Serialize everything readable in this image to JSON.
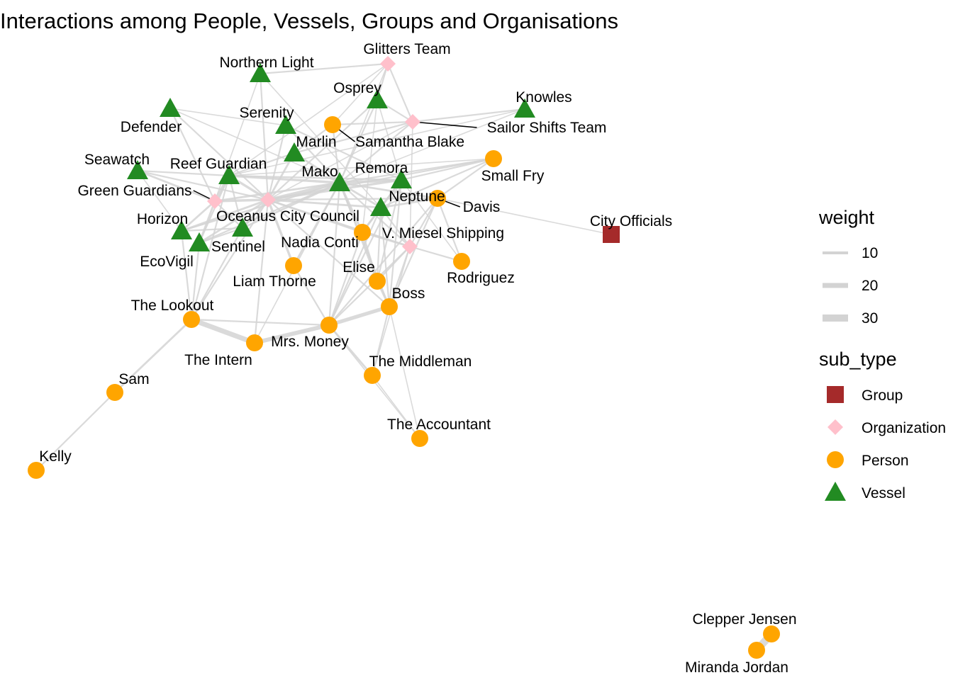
{
  "title": "Interactions among People, Vessels, Groups and Organisations",
  "colors": {
    "Group": "#a52a2a",
    "Organization": "#ffc0cb",
    "Person": "#ffa500",
    "Vessel": "#228b22",
    "edge": "#d3d3d3"
  },
  "legend": {
    "weight_title": "weight",
    "weight_items": [
      {
        "label": "10",
        "value": 10
      },
      {
        "label": "20",
        "value": 20
      },
      {
        "label": "30",
        "value": 30
      }
    ],
    "type_title": "sub_type",
    "type_items": [
      {
        "label": "Group",
        "type": "Group"
      },
      {
        "label": "Organization",
        "type": "Organization"
      },
      {
        "label": "Person",
        "type": "Person"
      },
      {
        "label": "Vessel",
        "type": "Vessel"
      }
    ]
  },
  "nodes": [
    {
      "id": "Glitters Team",
      "type": "Organization"
    },
    {
      "id": "Northern Light",
      "type": "Vessel"
    },
    {
      "id": "Osprey",
      "type": "Vessel"
    },
    {
      "id": "Knowles",
      "type": "Vessel"
    },
    {
      "id": "Defender",
      "type": "Vessel"
    },
    {
      "id": "Serenity",
      "type": "Vessel"
    },
    {
      "id": "Samantha Blake",
      "type": "Person"
    },
    {
      "id": "Sailor Shifts Team",
      "type": "Organization"
    },
    {
      "id": "Marlin",
      "type": "Vessel"
    },
    {
      "id": "Seawatch",
      "type": "Vessel"
    },
    {
      "id": "Reef Guardian",
      "type": "Vessel"
    },
    {
      "id": "Small Fry",
      "type": "Person"
    },
    {
      "id": "Mako",
      "type": "Vessel"
    },
    {
      "id": "Remora",
      "type": "Vessel"
    },
    {
      "id": "Green Guardians",
      "type": "Organization"
    },
    {
      "id": "Neptune",
      "type": "Vessel"
    },
    {
      "id": "Davis",
      "type": "Person"
    },
    {
      "id": "Oceanus City Council",
      "type": "Organization"
    },
    {
      "id": "Horizon",
      "type": "Vessel"
    },
    {
      "id": "City Officials",
      "type": "Group"
    },
    {
      "id": "V. Miesel Shipping",
      "type": "Organization"
    },
    {
      "id": "Nadia Conti",
      "type": "Person"
    },
    {
      "id": "Sentinel",
      "type": "Vessel"
    },
    {
      "id": "EcoVigil",
      "type": "Vessel"
    },
    {
      "id": "Elise",
      "type": "Person"
    },
    {
      "id": "Rodriguez",
      "type": "Person"
    },
    {
      "id": "Liam Thorne",
      "type": "Person"
    },
    {
      "id": "Boss",
      "type": "Person"
    },
    {
      "id": "The Lookout",
      "type": "Person"
    },
    {
      "id": "Mrs. Money",
      "type": "Person"
    },
    {
      "id": "The Intern",
      "type": "Person"
    },
    {
      "id": "The Middleman",
      "type": "Person"
    },
    {
      "id": "Sam",
      "type": "Person"
    },
    {
      "id": "The Accountant",
      "type": "Person"
    },
    {
      "id": "Kelly",
      "type": "Person"
    },
    {
      "id": "Clepper Jensen",
      "type": "Person"
    },
    {
      "id": "Miranda Jordan",
      "type": "Person"
    }
  ],
  "edges": [
    {
      "source": "The Lookout",
      "target": "The Intern",
      "weight": 20
    },
    {
      "source": "The Intern",
      "target": "Mrs. Money",
      "weight": 16
    },
    {
      "source": "Mrs. Money",
      "target": "Boss",
      "weight": 14
    },
    {
      "source": "The Lookout",
      "target": "Sam",
      "weight": 6
    },
    {
      "source": "Sam",
      "target": "Kelly",
      "weight": 4
    },
    {
      "source": "Clepper Jensen",
      "target": "Miranda Jordan",
      "weight": 32
    },
    {
      "source": "Davis",
      "target": "City Officials",
      "weight": 2
    },
    {
      "source": "Oceanus City Council",
      "target": "Mako",
      "weight": 10
    },
    {
      "source": "Oceanus City Council",
      "target": "Remora",
      "weight": 8
    },
    {
      "source": "Reef Guardian",
      "target": "Mako",
      "weight": 8
    },
    {
      "source": "Green Guardians",
      "target": "Reef Guardian",
      "weight": 10
    },
    {
      "source": "Green Guardians",
      "target": "Oceanus City Council",
      "weight": 8
    },
    {
      "source": "Horizon",
      "target": "Green Guardians",
      "weight": 6
    },
    {
      "source": "Sentinel",
      "target": "Oceanus City Council",
      "weight": 8
    },
    {
      "source": "EcoVigil",
      "target": "Green Guardians",
      "weight": 6
    },
    {
      "source": "Seawatch",
      "target": "Green Guardians",
      "weight": 6
    },
    {
      "source": "Defender",
      "target": "Green Guardians",
      "weight": 4
    },
    {
      "source": "Mako",
      "target": "Remora",
      "weight": 10
    },
    {
      "source": "Mako",
      "target": "Neptune",
      "weight": 6
    },
    {
      "source": "Mako",
      "target": "Nadia Conti",
      "weight": 6
    },
    {
      "source": "Remora",
      "target": "Neptune",
      "weight": 6
    },
    {
      "source": "Remora",
      "target": "Small Fry",
      "weight": 4
    },
    {
      "source": "Davis",
      "target": "Neptune",
      "weight": 6
    },
    {
      "source": "Davis",
      "target": "Small Fry",
      "weight": 4
    },
    {
      "source": "Davis",
      "target": "V. Miesel Shipping",
      "weight": 4
    },
    {
      "source": "Davis",
      "target": "Rodriguez",
      "weight": 4
    },
    {
      "source": "Davis",
      "target": "Mako",
      "weight": 6
    },
    {
      "source": "Nadia Conti",
      "target": "V. Miesel Shipping",
      "weight": 6
    },
    {
      "source": "Nadia Conti",
      "target": "Neptune",
      "weight": 6
    },
    {
      "source": "Nadia Conti",
      "target": "Remora",
      "weight": 6
    },
    {
      "source": "Nadia Conti",
      "target": "Elise",
      "weight": 6
    },
    {
      "source": "Nadia Conti",
      "target": "Mrs. Money",
      "weight": 4
    },
    {
      "source": "Nadia Conti",
      "target": "Oceanus City Council",
      "weight": 6
    },
    {
      "source": "Elise",
      "target": "Boss",
      "weight": 6
    },
    {
      "source": "Elise",
      "target": "V. Miesel Shipping",
      "weight": 4
    },
    {
      "source": "Boss",
      "target": "V. Miesel Shipping",
      "weight": 4
    },
    {
      "source": "Boss",
      "target": "The Middleman",
      "weight": 4
    },
    {
      "source": "Boss",
      "target": "The Accountant",
      "weight": 2
    },
    {
      "source": "Boss",
      "target": "Davis",
      "weight": 4
    },
    {
      "source": "Mrs. Money",
      "target": "The Middleman",
      "weight": 6
    },
    {
      "source": "Mrs. Money",
      "target": "The Accountant",
      "weight": 2
    },
    {
      "source": "Mrs. Money",
      "target": "V. Miesel Shipping",
      "weight": 4
    },
    {
      "source": "Mrs. Money",
      "target": "Davis",
      "weight": 4
    },
    {
      "source": "Liam Thorne",
      "target": "Oceanus City Council",
      "weight": 8
    },
    {
      "source": "Liam Thorne",
      "target": "Mrs. Money",
      "weight": 4
    },
    {
      "source": "Liam Thorne",
      "target": "Mako",
      "weight": 6
    },
    {
      "source": "The Lookout",
      "target": "Horizon",
      "weight": 4
    },
    {
      "source": "The Lookout",
      "target": "Reef Guardian",
      "weight": 4
    },
    {
      "source": "The Lookout",
      "target": "EcoVigil",
      "weight": 4
    },
    {
      "source": "The Lookout",
      "target": "Sentinel",
      "weight": 4
    },
    {
      "source": "The Lookout",
      "target": "Oceanus City Council",
      "weight": 4
    },
    {
      "source": "The Lookout",
      "target": "Mrs. Money",
      "weight": 4
    },
    {
      "source": "The Intern",
      "target": "Oceanus City Council",
      "weight": 4
    },
    {
      "source": "Glitters Team",
      "target": "Osprey",
      "weight": 4
    },
    {
      "source": "Glitters Team",
      "target": "Northern Light",
      "weight": 4
    },
    {
      "source": "Glitters Team",
      "target": "Sailor Shifts Team",
      "weight": 4
    },
    {
      "source": "Glitters Team",
      "target": "Samantha Blake",
      "weight": 2
    },
    {
      "source": "Glitters Team",
      "target": "Mako",
      "weight": 2
    },
    {
      "source": "Glitters Team",
      "target": "Reef Guardian",
      "weight": 2
    },
    {
      "source": "Sailor Shifts Team",
      "target": "Samantha Blake",
      "weight": 4
    },
    {
      "source": "Sailor Shifts Team",
      "target": "Osprey",
      "weight": 4
    },
    {
      "source": "Sailor Shifts Team",
      "target": "Knowles",
      "weight": 4
    },
    {
      "source": "Sailor Shifts Team",
      "target": "Mako",
      "weight": 4
    },
    {
      "source": "Sailor Shifts Team",
      "target": "Marlin",
      "weight": 4
    },
    {
      "source": "Sailor Shifts Team",
      "target": "V. Miesel Shipping",
      "weight": 2
    },
    {
      "source": "Sailor Shifts Team",
      "target": "Oceanus City Council",
      "weight": 2
    },
    {
      "source": "Knowles",
      "target": "Mako",
      "weight": 2
    },
    {
      "source": "Knowles",
      "target": "Reef Guardian",
      "weight": 2
    },
    {
      "source": "Samantha Blake",
      "target": "Mako",
      "weight": 4
    },
    {
      "source": "Samantha Blake",
      "target": "Marlin",
      "weight": 4
    },
    {
      "source": "Osprey",
      "target": "Mako",
      "weight": 4
    },
    {
      "source": "Osprey",
      "target": "Oceanus City Council",
      "weight": 4
    },
    {
      "source": "Northern Light",
      "target": "Oceanus City Council",
      "weight": 4
    },
    {
      "source": "Northern Light",
      "target": "Green Guardians",
      "weight": 2
    },
    {
      "source": "Northern Light",
      "target": "Neptune",
      "weight": 2
    },
    {
      "source": "Serenity",
      "target": "Oceanus City Council",
      "weight": 4
    },
    {
      "source": "Serenity",
      "target": "Mako",
      "weight": 4
    },
    {
      "source": "Serenity",
      "target": "Defender",
      "weight": 2
    },
    {
      "source": "Serenity",
      "target": "Remora",
      "weight": 4
    },
    {
      "source": "Marlin",
      "target": "Mako",
      "weight": 6
    },
    {
      "source": "Marlin",
      "target": "Oceanus City Council",
      "weight": 6
    },
    {
      "source": "Marlin",
      "target": "Reef Guardian",
      "weight": 4
    },
    {
      "source": "Defender",
      "target": "Oceanus City Council",
      "weight": 4
    },
    {
      "source": "Defender",
      "target": "Mako",
      "weight": 2
    },
    {
      "source": "Seawatch",
      "target": "Reef Guardian",
      "weight": 4
    },
    {
      "source": "Seawatch",
      "target": "Oceanus City Council",
      "weight": 4
    },
    {
      "source": "Seawatch",
      "target": "Horizon",
      "weight": 2
    },
    {
      "source": "Horizon",
      "target": "Oceanus City Council",
      "weight": 6
    },
    {
      "source": "Horizon",
      "target": "Sentinel",
      "weight": 4
    },
    {
      "source": "Horizon",
      "target": "Mako",
      "weight": 4
    },
    {
      "source": "EcoVigil",
      "target": "Oceanus City Council",
      "weight": 6
    },
    {
      "source": "EcoVigil",
      "target": "Sentinel",
      "weight": 4
    },
    {
      "source": "EcoVigil",
      "target": "Mako",
      "weight": 4
    },
    {
      "source": "EcoVigil",
      "target": "Reef Guardian",
      "weight": 4
    },
    {
      "source": "Sentinel",
      "target": "Mako",
      "weight": 6
    },
    {
      "source": "Sentinel",
      "target": "Reef Guardian",
      "weight": 4
    },
    {
      "source": "Reef Guardian",
      "target": "Oceanus City Council",
      "weight": 8
    },
    {
      "source": "Reef Guardian",
      "target": "Remora",
      "weight": 4
    },
    {
      "source": "Reef Guardian",
      "target": "Small Fry",
      "weight": 2
    },
    {
      "source": "Oceanus City Council",
      "target": "Neptune",
      "weight": 6
    },
    {
      "source": "Oceanus City Council",
      "target": "Small Fry",
      "weight": 4
    },
    {
      "source": "Oceanus City Council",
      "target": "V. Miesel Shipping",
      "weight": 4
    },
    {
      "source": "Oceanus City Council",
      "target": "Davis",
      "weight": 4
    },
    {
      "source": "Oceanus City Council",
      "target": "Boss",
      "weight": 4
    },
    {
      "source": "Green Guardians",
      "target": "Mako",
      "weight": 6
    },
    {
      "source": "Green Guardians",
      "target": "Sentinel",
      "weight": 4
    },
    {
      "source": "Neptune",
      "target": "V. Miesel Shipping",
      "weight": 4
    },
    {
      "source": "Neptune",
      "target": "Boss",
      "weight": 4
    },
    {
      "source": "Neptune",
      "target": "Elise",
      "weight": 4
    },
    {
      "source": "Neptune",
      "target": "Mrs. Money",
      "weight": 4
    },
    {
      "source": "V. Miesel Shipping",
      "target": "The Middleman",
      "weight": 2
    },
    {
      "source": "V. Miesel Shipping",
      "target": "Rodriguez",
      "weight": 4
    },
    {
      "source": "V. Miesel Shipping",
      "target": "Mako",
      "weight": 4
    },
    {
      "source": "Small Fry",
      "target": "Neptune",
      "weight": 4
    },
    {
      "source": "Small Fry",
      "target": "Mako",
      "weight": 4
    },
    {
      "source": "Remora",
      "target": "Rodriguez",
      "weight": 2
    },
    {
      "source": "Remora",
      "target": "Elise",
      "weight": 4
    },
    {
      "source": "Remora",
      "target": "Mrs. Money",
      "weight": 4
    },
    {
      "source": "Mako",
      "target": "Boss",
      "weight": 4
    },
    {
      "source": "Mako",
      "target": "Mrs. Money",
      "weight": 4
    },
    {
      "source": "Mako",
      "target": "Elise",
      "weight": 4
    },
    {
      "source": "Mako",
      "target": "The Intern",
      "weight": 2
    },
    {
      "source": "Boss",
      "target": "Remora",
      "weight": 4
    },
    {
      "source": "The Middleman",
      "target": "The Accountant",
      "weight": 2
    },
    {
      "source": "Osprey",
      "target": "Remora",
      "weight": 2
    },
    {
      "source": "Osprey",
      "target": "Nadia Conti",
      "weight": 2
    }
  ]
}
